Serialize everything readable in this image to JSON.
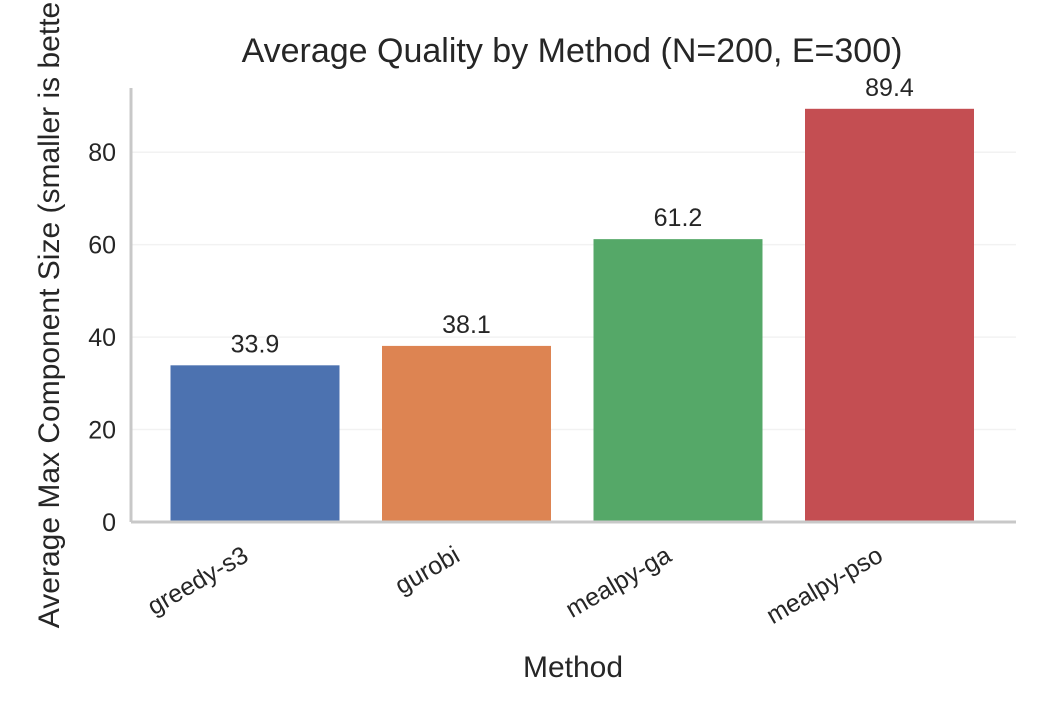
{
  "chart_data": {
    "type": "bar",
    "title": "Average Quality by Method (N=200, E=300)",
    "xlabel": "Method",
    "ylabel": "Average Max Component Size (smaller is better)",
    "categories": [
      "greedy-s3",
      "gurobi",
      "mealpy-ga",
      "mealpy-pso"
    ],
    "values": [
      33.9,
      38.1,
      61.2,
      89.4
    ],
    "value_labels": [
      "33.9",
      "38.1",
      "61.2",
      "89.4"
    ],
    "colors": [
      "#4c72b0",
      "#dd8452",
      "#55a868",
      "#c44e52"
    ],
    "ylim": [
      0,
      93.9
    ],
    "yticks": [
      0,
      20,
      40,
      60,
      80
    ],
    "ytick_labels": [
      "0",
      "20",
      "40",
      "60",
      "80"
    ],
    "grid": true,
    "legend": "none"
  }
}
